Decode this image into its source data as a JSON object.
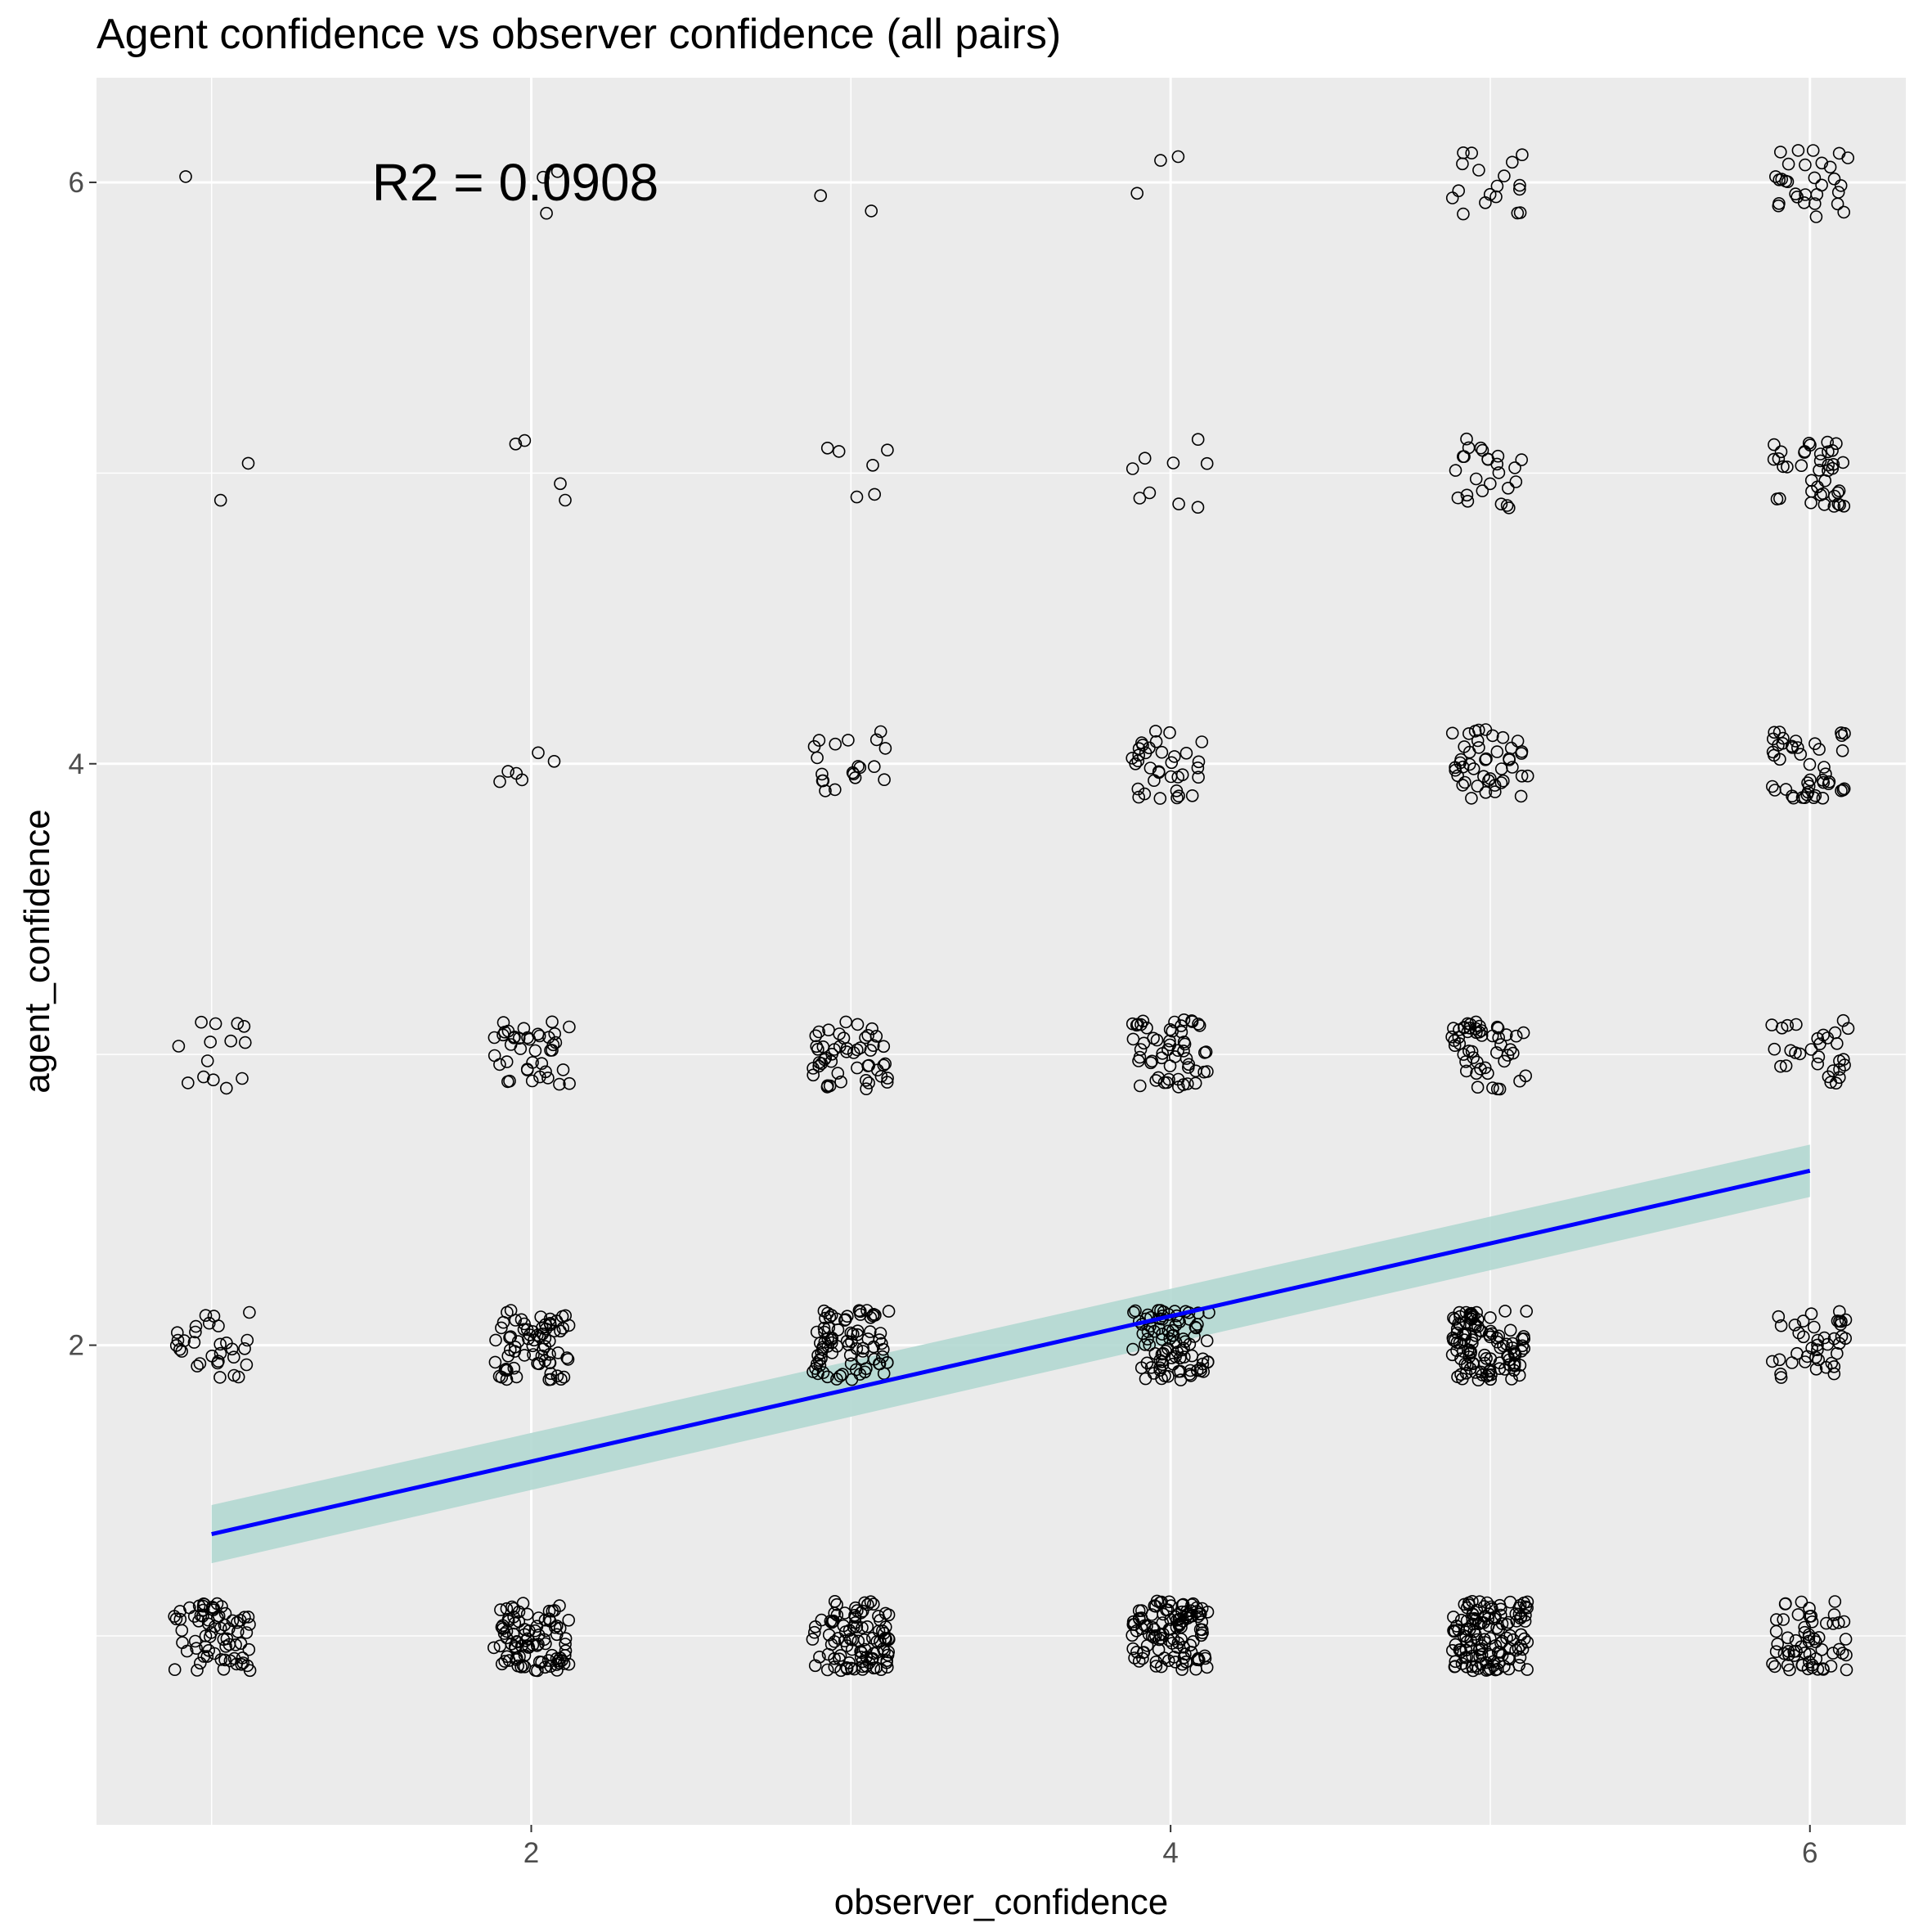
{
  "chart_data": {
    "type": "scatter",
    "title": "Agent confidence vs observer confidence (all pairs)",
    "xlabel": "observer_confidence",
    "ylabel": "agent_confidence",
    "x_ticks": [
      "2",
      "4",
      "6"
    ],
    "y_ticks": [
      "2",
      "4",
      "6"
    ],
    "xlim": [
      0.64,
      6.3
    ],
    "ylim": [
      0.35,
      6.36
    ],
    "grid": true,
    "jitter": {
      "x": 0.12,
      "y": 0.12
    },
    "points": {
      "description": "observed (observer_confidence, agent_confidence) pairs with counts",
      "cells": [
        {
          "x": 1,
          "y": 1,
          "n": 70
        },
        {
          "x": 2,
          "y": 1,
          "n": 90
        },
        {
          "x": 3,
          "y": 1,
          "n": 95
        },
        {
          "x": 4,
          "y": 1,
          "n": 110
        },
        {
          "x": 5,
          "y": 1,
          "n": 130
        },
        {
          "x": 6,
          "y": 1,
          "n": 60
        },
        {
          "x": 1,
          "y": 2,
          "n": 30
        },
        {
          "x": 2,
          "y": 2,
          "n": 70
        },
        {
          "x": 3,
          "y": 2,
          "n": 80
        },
        {
          "x": 4,
          "y": 2,
          "n": 90
        },
        {
          "x": 5,
          "y": 2,
          "n": 110
        },
        {
          "x": 6,
          "y": 2,
          "n": 40
        },
        {
          "x": 1,
          "y": 3,
          "n": 14
        },
        {
          "x": 2,
          "y": 3,
          "n": 40
        },
        {
          "x": 3,
          "y": 3,
          "n": 50
        },
        {
          "x": 4,
          "y": 3,
          "n": 55
        },
        {
          "x": 5,
          "y": 3,
          "n": 50
        },
        {
          "x": 6,
          "y": 3,
          "n": 30
        },
        {
          "x": 2,
          "y": 4,
          "n": 6
        },
        {
          "x": 3,
          "y": 4,
          "n": 20
        },
        {
          "x": 4,
          "y": 4,
          "n": 35
        },
        {
          "x": 5,
          "y": 4,
          "n": 45
        },
        {
          "x": 6,
          "y": 4,
          "n": 45
        },
        {
          "x": 1,
          "y": 5,
          "n": 2
        },
        {
          "x": 2,
          "y": 5,
          "n": 4
        },
        {
          "x": 3,
          "y": 5,
          "n": 6
        },
        {
          "x": 4,
          "y": 5,
          "n": 9
        },
        {
          "x": 5,
          "y": 5,
          "n": 25
        },
        {
          "x": 6,
          "y": 5,
          "n": 40
        },
        {
          "x": 1,
          "y": 6,
          "n": 1
        },
        {
          "x": 2,
          "y": 6,
          "n": 3
        },
        {
          "x": 3,
          "y": 6,
          "n": 2
        },
        {
          "x": 4,
          "y": 6,
          "n": 3
        },
        {
          "x": 5,
          "y": 6,
          "n": 18
        },
        {
          "x": 6,
          "y": 6,
          "n": 30
        }
      ]
    },
    "fit": {
      "type": "linear",
      "x": [
        1,
        6
      ],
      "y": [
        1.35,
        2.6
      ],
      "ci_halfwidth": [
        0.1,
        0.09
      ],
      "line_color": "#0000ff",
      "ci_color": "#b3d8d2"
    },
    "annotation": {
      "text": "R2 =  0.0908",
      "x": 1.95,
      "y": 6.0
    }
  },
  "colors": {
    "panel_bg": "#ebebeb",
    "grid_major": "#ffffff",
    "point_stroke": "#000000"
  }
}
